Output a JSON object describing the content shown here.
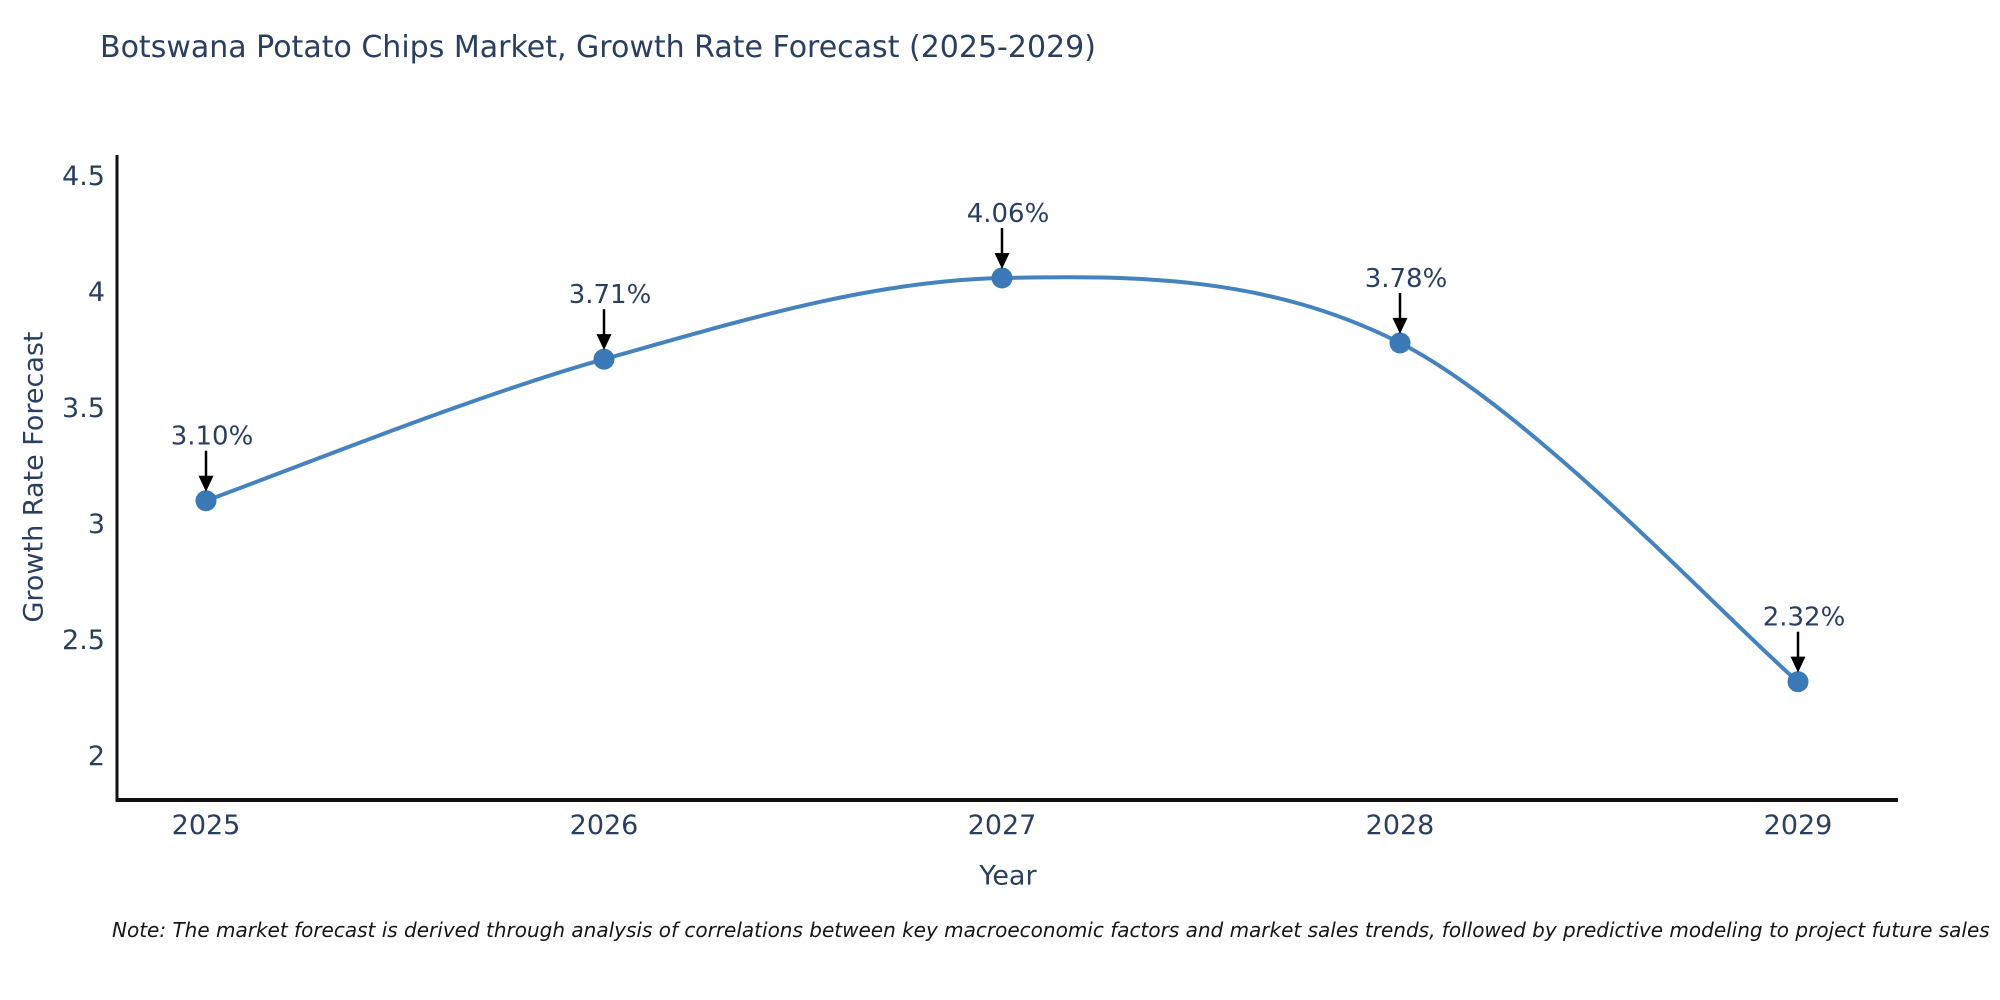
{
  "page": {
    "note": "Note: The market forecast is derived through analysis of correlations between key macroeconomic factors and market sales trends, followed by predictive modeling to project future sales"
  },
  "chart_data": {
    "type": "line",
    "title": "Botswana Potato Chips Market, Growth Rate Forecast (2025-2029)",
    "xlabel": "Year",
    "ylabel": "Growth Rate Forecast",
    "categories": [
      "2025",
      "2026",
      "2027",
      "2028",
      "2029"
    ],
    "values": [
      3.1,
      3.71,
      4.06,
      3.78,
      2.32
    ],
    "point_labels": [
      "3.10%",
      "3.71%",
      "4.06%",
      "3.78%",
      "2.32%"
    ],
    "yticks": [
      2,
      2.5,
      3,
      3.5,
      4,
      4.5
    ],
    "ylim": [
      1.81,
      4.59
    ],
    "line_shape": "spline",
    "grid": false,
    "legend": false,
    "colors": {
      "line": "#4583bf",
      "marker": "#3a79b6",
      "axis": "#111111",
      "text": "#2a3f5f",
      "annotation_text": "#2a3f5f",
      "annotation_arrow": "#000000",
      "note_text": "#151515",
      "background": "#ffffff"
    }
  }
}
